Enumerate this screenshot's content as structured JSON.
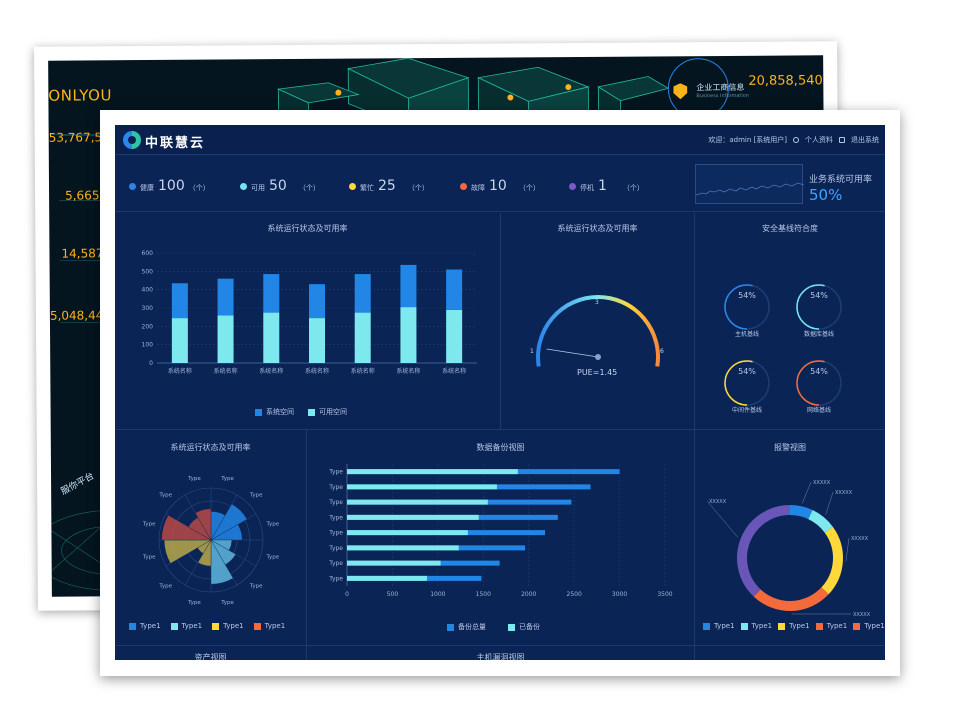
{
  "back_screen": {
    "brand": "ONLYOU",
    "numbers": [
      "53,767,5",
      "5,665",
      "14,587",
      "5,048,44"
    ],
    "company_label": "企业工商信息",
    "company_sub": "Business Information",
    "company_value": "20,858,540",
    "platform_text": "服你平台"
  },
  "header": {
    "brand_name": "中联慧云",
    "welcome": "欢迎：admin [系统用户]",
    "profile": "个人资料",
    "logout": "退出系统"
  },
  "status": [
    {
      "label": "健康",
      "value": "100",
      "unit": "（个）",
      "color": "#2a86e8"
    },
    {
      "label": "可用",
      "value": "50",
      "unit": "（个）",
      "color": "#72e4f0"
    },
    {
      "label": "繁忙",
      "value": "25",
      "unit": "（个）",
      "color": "#ffd83a"
    },
    {
      "label": "故障",
      "value": "10",
      "unit": "（个）",
      "color": "#f56a3a"
    },
    {
      "label": "停机",
      "value": "1",
      "unit": "（个）",
      "color": "#7b5cc6"
    }
  ],
  "availability": {
    "label": "业务系统可用率",
    "value": "50%"
  },
  "panels": {
    "status_bar_title": "系统运行状态及可用率",
    "gauge_title": "系统运行状态及可用率",
    "baseline_title": "安全基线符合度",
    "rose_title": "系统运行状态及可用率",
    "backup_title": "数据备份视图",
    "alarm_title": "报警视图",
    "asset_title": "资产视图",
    "vuln_title": "主机漏洞视图"
  },
  "chart_data": [
    {
      "type": "bar",
      "title": "系统运行状态及可用率",
      "categories": [
        "系统名称",
        "系统名称",
        "系统名称",
        "系统名称",
        "系统名称",
        "系统名称",
        "系统名称"
      ],
      "series": [
        {
          "name": "系统空间",
          "values": [
            190,
            200,
            210,
            185,
            210,
            230,
            220
          ],
          "color": "#2186e6"
        },
        {
          "name": "可用空间",
          "values": [
            245,
            260,
            275,
            245,
            275,
            305,
            290
          ],
          "color": "#7de8ee"
        }
      ],
      "ylim": [
        0,
        600
      ],
      "yticks": [
        0,
        100,
        200,
        300,
        400,
        500,
        600
      ]
    },
    {
      "type": "gauge",
      "title": "系统运行状态及可用率",
      "min_label": "1",
      "mid_label": "3",
      "max_label": "6",
      "value": 1.45,
      "value_label": "PUE=1.45"
    },
    {
      "type": "ring",
      "title": "安全基线符合度",
      "rings": [
        {
          "label": "主机基线",
          "value": 54,
          "text": "54%",
          "color": "#2a86e8"
        },
        {
          "label": "数据库基线",
          "value": 54,
          "text": "54%",
          "color": "#72e4f0"
        },
        {
          "label": "中间件基线",
          "value": 54,
          "text": "54%",
          "color": "#ffd83a"
        },
        {
          "label": "网络基线",
          "value": 54,
          "text": "54%",
          "color": "#f56a3a"
        }
      ]
    },
    {
      "type": "rose",
      "title": "系统运行状态及可用率",
      "labels": [
        "Type",
        "Type",
        "Type",
        "Type",
        "Type",
        "Type",
        "Type",
        "Type",
        "Type",
        "Type",
        "Type",
        "Type"
      ],
      "values": [
        0.55,
        0.8,
        0.6,
        0.4,
        0.55,
        0.85,
        0.5,
        0.3,
        0.9,
        0.95,
        0.5,
        0.6
      ],
      "series_colors": [
        "#2186e6",
        "#2186e6",
        "#2186e6",
        "#5fb7e0",
        "#5fb7e0",
        "#5fb7e0",
        "#b8a94a",
        "#b8a94a",
        "#b8a94a",
        "#b84a46",
        "#b84a46",
        "#b84a46"
      ],
      "legend": [
        {
          "name": "Type1",
          "color": "#2186e6"
        },
        {
          "name": "Type1",
          "color": "#7de8ee"
        },
        {
          "name": "Type1",
          "color": "#ffd83a"
        },
        {
          "name": "Type1",
          "color": "#f56a3a"
        }
      ]
    },
    {
      "type": "bar",
      "orientation": "horizontal",
      "title": "数据备份视图",
      "categories": [
        "Type",
        "Type",
        "Type",
        "Type",
        "Type",
        "Type",
        "Type",
        "Type"
      ],
      "series": [
        {
          "name": "备份总量",
          "values": [
            3000,
            2680,
            2470,
            2320,
            2180,
            1960,
            1680,
            1480
          ],
          "color": "#2186e6"
        },
        {
          "name": "已备份",
          "values": [
            1880,
            1650,
            1550,
            1450,
            1330,
            1230,
            1030,
            880
          ],
          "color": "#7de8ee"
        }
      ],
      "xlim": [
        0,
        3500
      ],
      "xticks": [
        0,
        500,
        1000,
        1500,
        2000,
        2500,
        3000,
        3500
      ]
    },
    {
      "type": "pie",
      "title": "报警视图",
      "slices": [
        {
          "label": "XXXXX",
          "value": 7,
          "color": "#2186e6"
        },
        {
          "label": "XXXXX",
          "value": 8,
          "color": "#7de8ee"
        },
        {
          "label": "XXXXX",
          "value": 22,
          "color": "#ffd83a"
        },
        {
          "label": "XXXXX",
          "value": 25,
          "color": "#f56a3a"
        },
        {
          "label": "XXXXX",
          "value": 38,
          "color": "#6a55b8"
        }
      ],
      "legend": [
        {
          "name": "Type1",
          "color": "#2186e6"
        },
        {
          "name": "Type1",
          "color": "#7de8ee"
        },
        {
          "name": "Type1",
          "color": "#ffd83a"
        },
        {
          "name": "Type1",
          "color": "#f56a3a"
        },
        {
          "name": "Type1",
          "color": "#f56a3a"
        }
      ]
    }
  ]
}
